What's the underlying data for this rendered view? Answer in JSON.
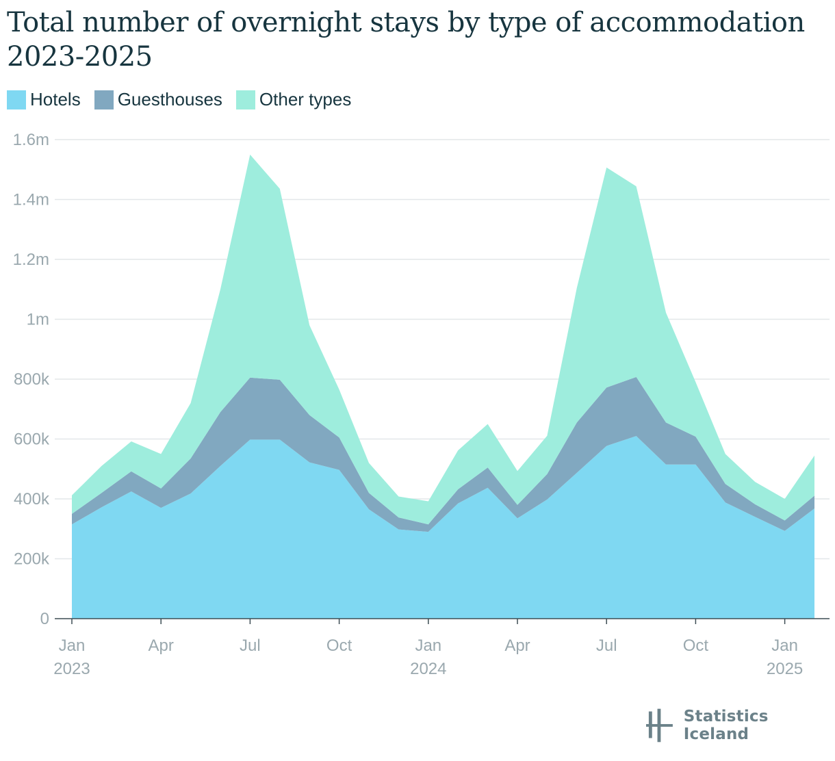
{
  "title": "Total number of overnight stays by type of accommodation 2023-2025",
  "legend": [
    {
      "label": "Hotels",
      "color": "#7fd8f2"
    },
    {
      "label": "Guesthouses",
      "color": "#81a8c0"
    },
    {
      "label": "Other types",
      "color": "#9eeddd"
    }
  ],
  "chart_data": {
    "type": "area",
    "stacked": true,
    "x": [
      "2023-01",
      "2023-02",
      "2023-03",
      "2023-04",
      "2023-05",
      "2023-06",
      "2023-07",
      "2023-08",
      "2023-09",
      "2023-10",
      "2023-11",
      "2023-12",
      "2024-01",
      "2024-02",
      "2024-03",
      "2024-04",
      "2024-05",
      "2024-06",
      "2024-07",
      "2024-08",
      "2024-09",
      "2024-10",
      "2024-11",
      "2024-12",
      "2025-01",
      "2025-02"
    ],
    "series": [
      {
        "name": "Hotels",
        "color": "#7fd8f2",
        "values": [
          315000,
          372000,
          425000,
          370000,
          418000,
          510000,
          598000,
          598000,
          522000,
          497000,
          365000,
          298000,
          290000,
          385000,
          437000,
          335000,
          398000,
          487000,
          577000,
          610000,
          515000,
          515000,
          388000,
          340000,
          293000,
          368000
        ]
      },
      {
        "name": "Guesthouses",
        "color": "#81a8c0",
        "values": [
          35000,
          48000,
          67000,
          65000,
          117000,
          180000,
          207000,
          200000,
          158000,
          108000,
          55000,
          40000,
          25000,
          47000,
          68000,
          45000,
          85000,
          168000,
          195000,
          197000,
          140000,
          93000,
          62000,
          42000,
          35000,
          43000
        ]
      },
      {
        "name": "Other types",
        "color": "#9eeddd",
        "values": [
          62000,
          90000,
          100000,
          115000,
          185000,
          410000,
          745000,
          638000,
          300000,
          160000,
          100000,
          70000,
          77000,
          130000,
          145000,
          113000,
          128000,
          450000,
          735000,
          637000,
          367000,
          182000,
          100000,
          75000,
          72000,
          134000
        ]
      }
    ],
    "ylim": [
      0,
      1600000
    ],
    "yticks": [
      "0",
      "200k",
      "400k",
      "600k",
      "800k",
      "1m",
      "1.2m",
      "1.4m",
      "1.6m"
    ],
    "xticks": [
      {
        "line1": "Jan",
        "line2": "2023",
        "index": 0
      },
      {
        "line1": "Apr",
        "line2": "",
        "index": 3
      },
      {
        "line1": "Jul",
        "line2": "",
        "index": 6
      },
      {
        "line1": "Oct",
        "line2": "",
        "index": 9
      },
      {
        "line1": "Jan",
        "line2": "2024",
        "index": 12
      },
      {
        "line1": "Apr",
        "line2": "",
        "index": 15
      },
      {
        "line1": "Jul",
        "line2": "",
        "index": 18
      },
      {
        "line1": "Oct",
        "line2": "",
        "index": 21
      },
      {
        "line1": "Jan",
        "line2": "2025",
        "index": 24
      }
    ],
    "grid": true,
    "legend_position": "top-left"
  },
  "branding": {
    "logo_text": "Statistics Iceland"
  }
}
